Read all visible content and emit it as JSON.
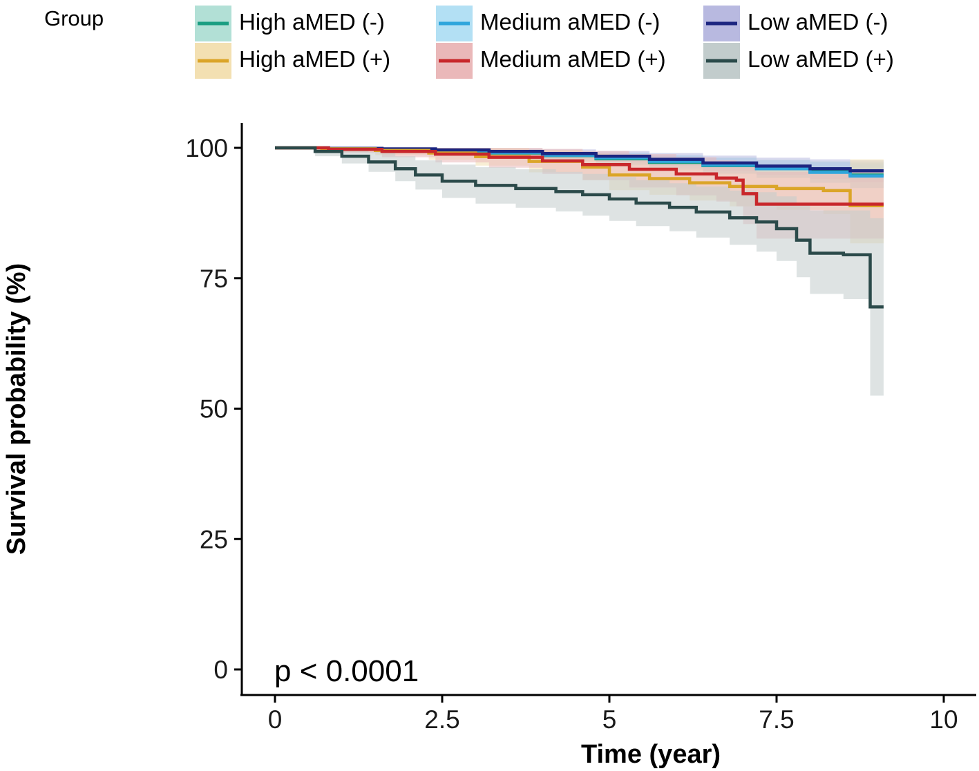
{
  "chart_data": {
    "type": "line",
    "subtype": "kaplan-meier-survival",
    "title": "",
    "xlabel": "Time (year)",
    "ylabel": "Survival probability (%)",
    "xlim": [
      0,
      10
    ],
    "ylim": [
      0,
      100
    ],
    "xticks": [
      0,
      2.5,
      5,
      7.5,
      10
    ],
    "xtick_labels": [
      "0",
      "2.5",
      "5",
      "7.5",
      "10"
    ],
    "yticks": [
      0,
      25,
      50,
      75,
      100
    ],
    "ytick_labels": [
      "0",
      "25",
      "50",
      "75",
      "100"
    ],
    "grid": false,
    "legend_title": "Group",
    "legend_position": "top",
    "annotation": "p < 0.0001",
    "series": [
      {
        "name": "High aMED (-)",
        "color": "#1a9e82",
        "fill": "#b2e0d6",
        "x": [
          0,
          0.8,
          1.6,
          2.4,
          3.2,
          4.0,
          4.8,
          5.6,
          6.4,
          7.2,
          8.0,
          8.6,
          9.1
        ],
        "y": [
          100,
          99.9,
          99.7,
          99.4,
          99.0,
          98.5,
          97.9,
          97.2,
          96.6,
          96.0,
          95.4,
          94.8,
          94.8
        ],
        "lower": [
          100,
          99.7,
          99.3,
          98.8,
          98.2,
          97.5,
          96.7,
          95.8,
          95.0,
          94.2,
          93.3,
          92.3,
          92.3
        ],
        "upper": [
          100,
          100,
          100,
          99.9,
          99.7,
          99.4,
          99.0,
          98.5,
          98.1,
          97.7,
          97.4,
          97.2,
          97.2
        ]
      },
      {
        "name": "Medium aMED (-)",
        "color": "#2fa6dc",
        "fill": "#b3e0f4",
        "x": [
          0,
          0.8,
          1.6,
          2.4,
          3.2,
          4.0,
          4.8,
          5.6,
          6.4,
          7.2,
          8.0,
          8.6,
          9.1
        ],
        "y": [
          100,
          99.9,
          99.7,
          99.5,
          99.1,
          98.6,
          98.1,
          97.4,
          96.7,
          96.0,
          95.3,
          94.6,
          94.6
        ],
        "lower": [
          100,
          99.7,
          99.4,
          99.0,
          98.4,
          97.7,
          97.0,
          96.1,
          95.2,
          94.3,
          93.3,
          92.3,
          92.3
        ],
        "upper": [
          100,
          100,
          100,
          99.9,
          99.7,
          99.4,
          99.1,
          98.6,
          98.1,
          97.6,
          97.2,
          96.8,
          96.8
        ]
      },
      {
        "name": "Low aMED (-)",
        "color": "#1c2580",
        "fill": "#b8b9e0",
        "x": [
          0,
          0.8,
          1.6,
          2.4,
          3.2,
          4.0,
          4.8,
          5.6,
          6.4,
          7.2,
          8.0,
          8.6,
          9.1
        ],
        "y": [
          100,
          99.9,
          99.8,
          99.6,
          99.3,
          98.9,
          98.4,
          97.8,
          97.1,
          96.5,
          96.0,
          95.6,
          95.6
        ],
        "lower": [
          100,
          99.7,
          99.5,
          99.1,
          98.6,
          98.0,
          97.3,
          96.5,
          95.6,
          94.8,
          94.0,
          93.4,
          93.4
        ],
        "upper": [
          100,
          100,
          100,
          100,
          99.9,
          99.7,
          99.4,
          99.0,
          98.5,
          98.1,
          97.8,
          97.6,
          97.6
        ]
      },
      {
        "name": "High aMED (+)",
        "color": "#dba528",
        "fill": "#f3e0b2",
        "x": [
          0,
          0.7,
          1.5,
          2.3,
          3.0,
          3.8,
          4.6,
          5.0,
          5.6,
          6.2,
          6.8,
          7.5,
          8.2,
          8.5,
          8.6,
          9.1
        ],
        "y": [
          100,
          99.8,
          99.5,
          99.0,
          98.3,
          97.4,
          96.3,
          94.8,
          94.1,
          93.3,
          92.6,
          92.2,
          91.8,
          91.8,
          88.9,
          88.9
        ],
        "lower": [
          100,
          99.2,
          98.6,
          97.7,
          96.6,
          95.3,
          93.8,
          91.9,
          91.0,
          89.9,
          88.8,
          88.1,
          87.3,
          87.3,
          81.7,
          81.7
        ],
        "upper": [
          100,
          100,
          100,
          100,
          100,
          99.6,
          98.9,
          97.9,
          97.4,
          96.9,
          96.5,
          96.3,
          96.2,
          96.2,
          97.8,
          97.8
        ]
      },
      {
        "name": "Medium aMED (+)",
        "color": "#c8272b",
        "fill": "#eab8b9",
        "x": [
          0,
          0.8,
          1.6,
          2.4,
          3.2,
          4.0,
          4.6,
          5.3,
          6.0,
          6.6,
          6.9,
          7.0,
          7.2,
          7.6,
          8.2,
          9.1
        ],
        "y": [
          100,
          99.7,
          99.3,
          98.8,
          98.2,
          97.5,
          96.8,
          95.9,
          95.0,
          94.2,
          93.8,
          91.2,
          89.2,
          89.2,
          89.2,
          89.2
        ],
        "lower": [
          100,
          99.0,
          98.2,
          97.2,
          96.2,
          95.0,
          93.8,
          92.4,
          90.9,
          89.7,
          88.8,
          85.4,
          82.6,
          82.6,
          82.6,
          82.6
        ],
        "upper": [
          100,
          100,
          100,
          100,
          100,
          99.8,
          99.4,
          98.8,
          98.2,
          97.6,
          97.4,
          96.4,
          95.4,
          95.4,
          95.4,
          95.4
        ]
      },
      {
        "name": "Low aMED (+)",
        "color": "#2b4a4a",
        "fill": "#c2cccc",
        "x": [
          0,
          0.6,
          1.0,
          1.4,
          1.8,
          2.1,
          2.5,
          3.0,
          3.6,
          4.2,
          4.6,
          5.0,
          5.4,
          5.9,
          6.3,
          6.8,
          7.2,
          7.5,
          7.8,
          8.0,
          8.5,
          8.9,
          9.1
        ],
        "y": [
          100,
          99.3,
          98.4,
          97.3,
          96.0,
          94.8,
          93.6,
          92.8,
          92.2,
          91.6,
          91.0,
          90.2,
          89.4,
          88.6,
          87.7,
          86.6,
          85.8,
          84.5,
          82.3,
          79.8,
          79.5,
          69.5,
          69.5
        ],
        "lower": [
          100,
          98.4,
          97.0,
          95.4,
          93.6,
          92.0,
          90.4,
          89.3,
          88.5,
          87.8,
          87.0,
          86.0,
          85.0,
          84.0,
          82.8,
          81.4,
          80.1,
          78.3,
          75.2,
          72.0,
          71.0,
          52.5,
          52.5
        ],
        "upper": [
          100,
          100,
          99.8,
          99.2,
          98.4,
          97.6,
          96.8,
          96.3,
          95.9,
          95.4,
          95.0,
          94.4,
          93.8,
          93.2,
          92.6,
          91.8,
          91.5,
          90.7,
          89.4,
          88.0,
          88.0,
          86.5,
          86.5
        ]
      }
    ]
  }
}
